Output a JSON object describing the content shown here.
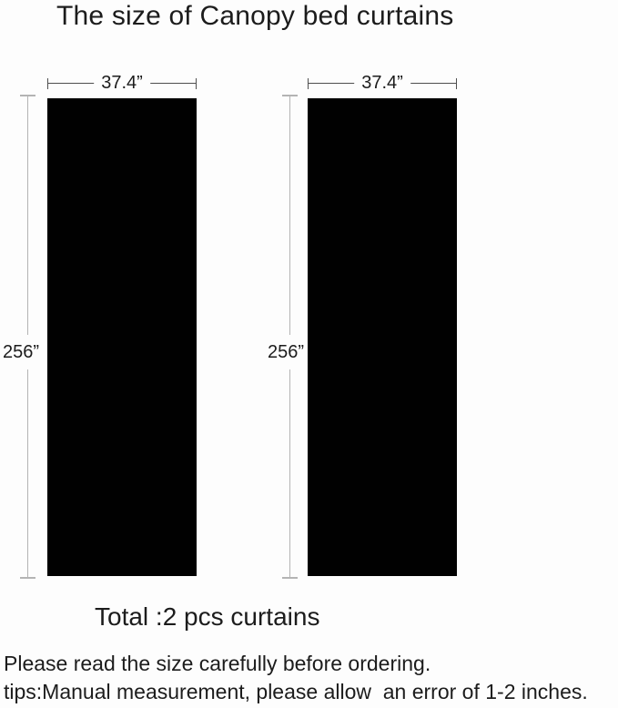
{
  "title": "The size of Canopy bed curtains",
  "colors": {
    "background": "#fdfdfd",
    "curtain": "#010101",
    "dim_dark": "#4f4f4f",
    "dim_light": "#b4b4b4",
    "text": "#1c1c1c"
  },
  "diagrams": [
    {
      "name": "curtain-1",
      "width_label": "37.4”",
      "height_label": "256”"
    },
    {
      "name": "curtain-2",
      "width_label": "37.4”",
      "height_label": "256”"
    }
  ],
  "footer": {
    "total": "Total :2 pcs curtains",
    "note1": "Please read the size carefully before ordering.",
    "note2": "tips:Manual measurement, please allow  an error of 1-2 inches."
  }
}
